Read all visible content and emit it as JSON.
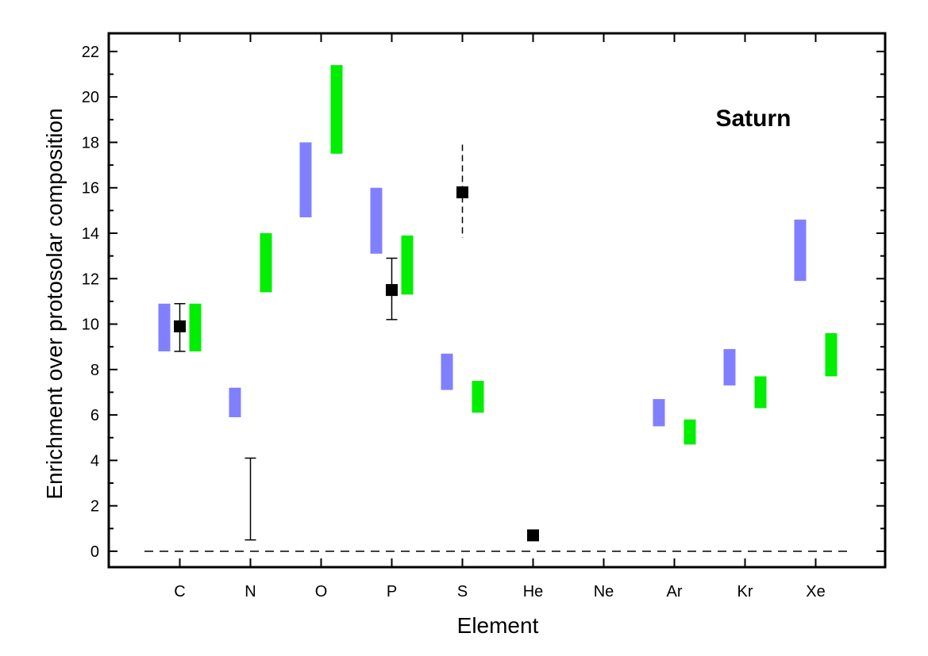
{
  "chart_data": {
    "type": "scatter",
    "title": "",
    "xlabel": "Element",
    "ylabel": "Enrichment over protosolar composition",
    "annotation": "Saturn",
    "categories": [
      "C",
      "N",
      "O",
      "P",
      "S",
      "He",
      "Ne",
      "Ar",
      "Kr",
      "Xe"
    ],
    "ylim": [
      -0.7,
      22.8
    ],
    "yticks": [
      "0",
      "2",
      "4",
      "6",
      "8",
      "10",
      "12",
      "14",
      "16",
      "18",
      "20",
      "22"
    ],
    "grid": false,
    "reference_line_y": 0,
    "colors": {
      "blue_range": "#8080ff",
      "green_range": "#00ee00",
      "observed": "#000000"
    },
    "range_bars": [
      {
        "color": "blue",
        "values": [
          {
            "category": "C",
            "low": 8.8,
            "high": 10.9
          },
          {
            "category": "N",
            "low": 5.9,
            "high": 7.2
          },
          {
            "category": "O",
            "low": 14.7,
            "high": 18.0
          },
          {
            "category": "P",
            "low": 13.1,
            "high": 16.0
          },
          {
            "category": "S",
            "low": 7.1,
            "high": 8.7
          },
          {
            "category": "Ar",
            "low": 5.5,
            "high": 6.7
          },
          {
            "category": "Kr",
            "low": 7.3,
            "high": 8.9
          },
          {
            "category": "Xe",
            "low": 11.9,
            "high": 14.6
          }
        ]
      },
      {
        "color": "green",
        "values": [
          {
            "category": "C",
            "low": 8.8,
            "high": 10.9
          },
          {
            "category": "N",
            "low": 11.4,
            "high": 14.0
          },
          {
            "category": "O",
            "low": 17.5,
            "high": 21.4
          },
          {
            "category": "P",
            "low": 11.3,
            "high": 13.9
          },
          {
            "category": "S",
            "low": 6.1,
            "high": 7.5
          },
          {
            "category": "Ar",
            "low": 4.7,
            "high": 5.8
          },
          {
            "category": "Kr",
            "low": 6.3,
            "high": 7.7
          },
          {
            "category": "Xe",
            "low": 7.7,
            "high": 9.6
          }
        ]
      }
    ],
    "observations": [
      {
        "category": "C",
        "value": 9.9,
        "err_low": 8.8,
        "err_high": 10.9,
        "err_style": "solid"
      },
      {
        "category": "N",
        "value": null,
        "err_low": 0.5,
        "err_high": 4.1,
        "err_style": "solid"
      },
      {
        "category": "P",
        "value": 11.5,
        "err_low": 10.2,
        "err_high": 12.9,
        "err_style": "solid"
      },
      {
        "category": "S",
        "value": 15.8,
        "err_low": 13.8,
        "err_high": 17.9,
        "err_style": "dashed"
      },
      {
        "category": "He",
        "value": 0.7,
        "err_low": null,
        "err_high": null,
        "err_style": "none"
      }
    ]
  }
}
